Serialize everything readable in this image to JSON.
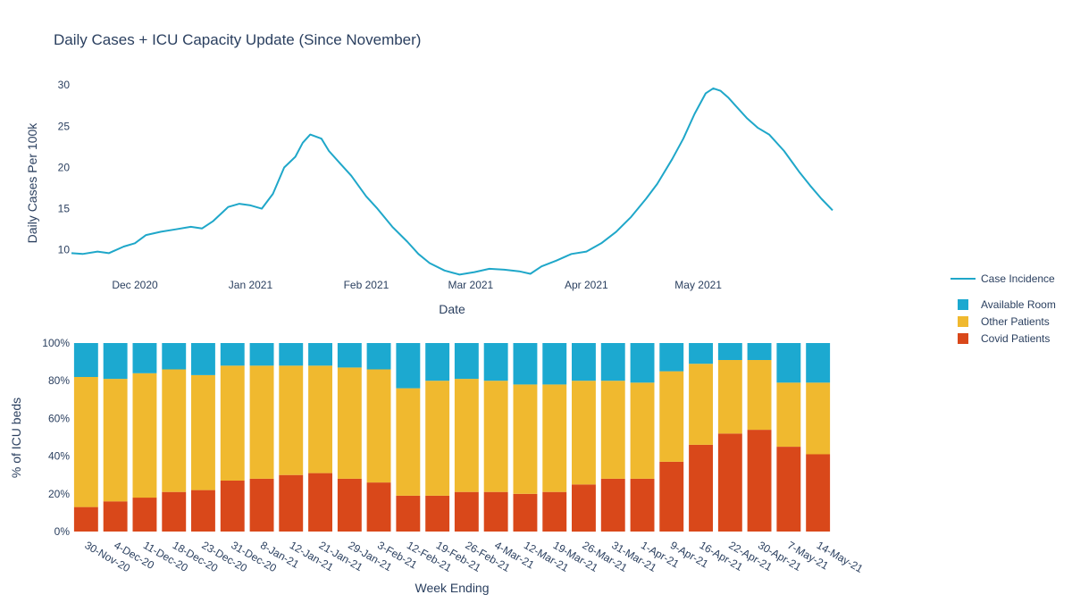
{
  "chart_title": "Daily Cases + ICU Capacity Update (Since November)",
  "colors": {
    "line": "#1fa7c9",
    "available": "#1ca9d0",
    "other": "#f0b92f",
    "covid": "#d9481a",
    "text": "#2a3f5f"
  },
  "legend": [
    {
      "label": "Case Incidence",
      "kind": "line",
      "color": "#1fa7c9"
    },
    {
      "label": "Available Room",
      "kind": "square",
      "color": "#1ca9d0"
    },
    {
      "label": "Other Patients",
      "kind": "square",
      "color": "#f0b92f"
    },
    {
      "label": "Covid Patients",
      "kind": "square",
      "color": "#d9481a"
    }
  ],
  "chart_data": [
    {
      "type": "line",
      "series_name": "Case Incidence",
      "xlabel": "Date",
      "ylabel": "Daily Cases Per 100k",
      "x_start": "2020-11-14",
      "x_end": "2021-05-22",
      "ylim": [
        6.5,
        31
      ],
      "yticks": [
        10,
        15,
        20,
        25,
        30
      ],
      "xticks": [
        {
          "label": "Dec 2020",
          "day": 17
        },
        {
          "label": "Jan 2021",
          "day": 48
        },
        {
          "label": "Feb 2021",
          "day": 79
        },
        {
          "label": "Mar 2021",
          "day": 107
        },
        {
          "label": "Apr 2021",
          "day": 138
        },
        {
          "label": "May 2021",
          "day": 168
        }
      ],
      "points": [
        [
          0,
          9.6
        ],
        [
          3,
          9.5
        ],
        [
          7,
          9.8
        ],
        [
          10,
          9.6
        ],
        [
          14,
          10.4
        ],
        [
          17,
          10.8
        ],
        [
          20,
          11.8
        ],
        [
          24,
          12.2
        ],
        [
          28,
          12.5
        ],
        [
          32,
          12.8
        ],
        [
          35,
          12.6
        ],
        [
          38,
          13.5
        ],
        [
          42,
          15.2
        ],
        [
          45,
          15.6
        ],
        [
          48,
          15.4
        ],
        [
          51,
          15.0
        ],
        [
          54,
          16.8
        ],
        [
          57,
          20.0
        ],
        [
          60,
          21.3
        ],
        [
          62,
          23.0
        ],
        [
          64,
          24.0
        ],
        [
          67,
          23.5
        ],
        [
          69,
          22.0
        ],
        [
          72,
          20.5
        ],
        [
          75,
          19.0
        ],
        [
          79,
          16.5
        ],
        [
          82,
          15.0
        ],
        [
          86,
          12.8
        ],
        [
          90,
          11.0
        ],
        [
          93,
          9.5
        ],
        [
          96,
          8.4
        ],
        [
          100,
          7.5
        ],
        [
          104,
          7.0
        ],
        [
          108,
          7.3
        ],
        [
          112,
          7.7
        ],
        [
          116,
          7.6
        ],
        [
          120,
          7.4
        ],
        [
          123,
          7.1
        ],
        [
          126,
          8.0
        ],
        [
          130,
          8.7
        ],
        [
          134,
          9.5
        ],
        [
          138,
          9.8
        ],
        [
          142,
          10.8
        ],
        [
          146,
          12.2
        ],
        [
          150,
          14.0
        ],
        [
          154,
          16.2
        ],
        [
          157,
          18.0
        ],
        [
          161,
          21.0
        ],
        [
          164,
          23.5
        ],
        [
          167,
          26.5
        ],
        [
          170,
          29.0
        ],
        [
          172,
          29.6
        ],
        [
          174,
          29.3
        ],
        [
          176,
          28.5
        ],
        [
          178,
          27.5
        ],
        [
          181,
          26.0
        ],
        [
          184,
          24.8
        ],
        [
          187,
          24.0
        ],
        [
          191,
          22.0
        ],
        [
          195,
          19.5
        ],
        [
          198,
          17.8
        ],
        [
          201,
          16.2
        ],
        [
          204,
          14.8
        ]
      ]
    },
    {
      "type": "bar",
      "stacked": true,
      "xlabel": "Week Ending",
      "ylabel": "% of ICU beds",
      "ylim": [
        0,
        100
      ],
      "yticks": [
        "0%",
        "20%",
        "40%",
        "60%",
        "80%",
        "100%"
      ],
      "categories": [
        "30-Nov-20",
        "4-Dec-20",
        "11-Dec-20",
        "18-Dec-20",
        "23-Dec-20",
        "31-Dec-20",
        "8-Jan-21",
        "12-Jan-21",
        "21-Jan-21",
        "29-Jan-21",
        "3-Feb-21",
        "12-Feb-21",
        "19-Feb-21",
        "26-Feb-21",
        "4-Mar-21",
        "12-Mar-21",
        "19-Mar-21",
        "26-Mar-21",
        "31-Mar-21",
        "1-Apr-21",
        "9-Apr-21",
        "16-Apr-21",
        "22-Apr-21",
        "30-Apr-21",
        "7-May-21",
        "14-May-21"
      ],
      "series": [
        {
          "name": "Covid Patients",
          "values": [
            13,
            16,
            18,
            21,
            22,
            27,
            28,
            30,
            31,
            28,
            26,
            19,
            19,
            21,
            21,
            20,
            21,
            25,
            28,
            28,
            37,
            46,
            52,
            54,
            45,
            41
          ]
        },
        {
          "name": "Other Patients",
          "values": [
            69,
            65,
            66,
            65,
            61,
            61,
            60,
            58,
            57,
            59,
            60,
            57,
            61,
            60,
            59,
            58,
            57,
            55,
            52,
            51,
            48,
            43,
            39,
            37,
            34,
            38
          ]
        },
        {
          "name": "Available Room",
          "values": [
            18,
            19,
            16,
            14,
            17,
            12,
            12,
            12,
            12,
            13,
            14,
            24,
            20,
            19,
            20,
            22,
            22,
            20,
            20,
            21,
            15,
            11,
            9,
            9,
            21,
            21
          ]
        }
      ]
    }
  ]
}
